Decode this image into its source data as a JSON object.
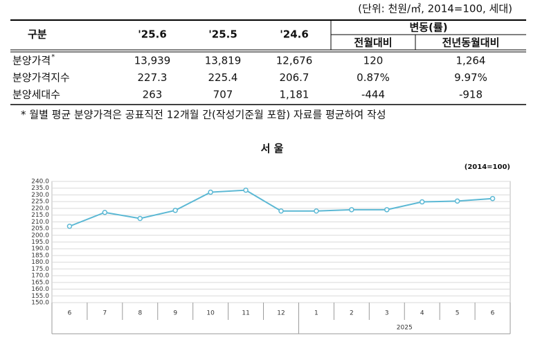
{
  "unit_note": "(단위: 천원/㎡, 2014=100, 세대)",
  "table": {
    "header": {
      "label": "구분",
      "periods": [
        "'25.6",
        "'25.5",
        "'24.6"
      ],
      "change": "변동(률)",
      "change_sub": [
        "전월대비",
        "전년동월대비"
      ]
    },
    "rows": [
      {
        "label": "분양가격",
        "marker": "*",
        "cells": [
          "13,939",
          "13,819",
          "12,676",
          "120",
          "1,264"
        ]
      },
      {
        "label": "분양가격지수",
        "cells": [
          "227.3",
          "225.4",
          "206.7",
          "0.87%",
          "9.97%"
        ]
      },
      {
        "label": "분양세대수",
        "cells": [
          "263",
          "707",
          "1,181",
          "-444",
          "-918"
        ]
      }
    ],
    "footnote": "* 월별 평균 분양가격은 공표직전 12개월 간(작성기준월 포함) 자료를 평균하여 작성"
  },
  "chart_data": {
    "type": "line",
    "title": "서 울",
    "subtitle": "(2014=100)",
    "categories": [
      "6",
      "7",
      "8",
      "9",
      "10",
      "11",
      "12",
      "1",
      "2",
      "3",
      "4",
      "5",
      "6"
    ],
    "year_label": "2025",
    "series": [
      {
        "color": "#5bb8d4",
        "values": [
          206.7,
          217,
          212.5,
          218.5,
          232,
          233.5,
          218,
          218,
          219,
          219,
          224.8,
          225.4,
          227.3
        ]
      }
    ],
    "ylim": [
      150,
      240
    ],
    "yticks": [
      {
        "value": 150,
        "label": "150.0"
      },
      {
        "value": 155,
        "label": "155.0"
      },
      {
        "value": 160,
        "label": "160.0"
      },
      {
        "value": 165,
        "label": "165.0"
      },
      {
        "value": 170,
        "label": "170.0"
      },
      {
        "value": 175,
        "label": "175.0"
      },
      {
        "value": 180,
        "label": "180.0"
      },
      {
        "value": 185,
        "label": "185.0"
      },
      {
        "value": 190,
        "label": "190.0"
      },
      {
        "value": 195,
        "label": "195.0"
      },
      {
        "value": 200,
        "label": "200.0"
      },
      {
        "value": 205,
        "label": "205.0"
      },
      {
        "value": 210,
        "label": "210.0"
      },
      {
        "value": 215,
        "label": "215.0"
      },
      {
        "value": 220,
        "label": "220.0"
      },
      {
        "value": 225,
        "label": "225.0"
      },
      {
        "value": 230,
        "label": "230.0"
      },
      {
        "value": 235,
        "label": "235.0"
      },
      {
        "value": 240,
        "label": "240.0"
      }
    ],
    "grid": true
  }
}
